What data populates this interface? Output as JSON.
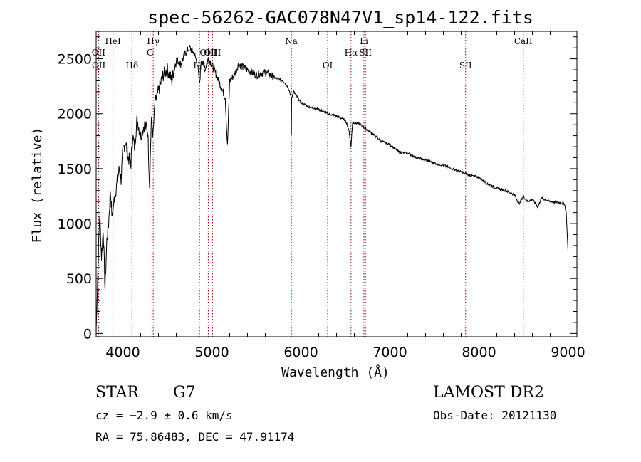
{
  "chart_data": {
    "type": "line",
    "title": "spec-56262-GAC078N47V1_sp14-122.fits",
    "xlabel": "Wavelength (Å)",
    "ylabel": "Flux (relative)",
    "xlim": [
      3700,
      9100
    ],
    "ylim": [
      -30,
      2750
    ],
    "xticks": [
      4000,
      5000,
      6000,
      7000,
      8000,
      9000
    ],
    "xtick_labels": [
      "4000",
      "5000",
      "6000",
      "7000",
      "8000",
      "9000"
    ],
    "yticks": [
      0,
      500,
      1000,
      1500,
      2000,
      2500
    ],
    "ytick_labels": [
      "0",
      "500",
      "1000",
      "1500",
      "2000",
      "2500"
    ],
    "series": [
      {
        "name": "spectrum",
        "x": [
          3700,
          3720,
          3740,
          3760,
          3780,
          3800,
          3820,
          3840,
          3860,
          3880,
          3900,
          3930,
          3960,
          3980,
          4000,
          4030,
          4060,
          4090,
          4110,
          4130,
          4160,
          4200,
          4240,
          4280,
          4300,
          4320,
          4340,
          4360,
          4400,
          4450,
          4500,
          4550,
          4600,
          4650,
          4700,
          4750,
          4800,
          4840,
          4861,
          4880,
          4920,
          4960,
          5000,
          5050,
          5100,
          5150,
          5175,
          5200,
          5250,
          5300,
          5400,
          5500,
          5600,
          5700,
          5800,
          5850,
          5890,
          5893,
          5896,
          5920,
          6000,
          6100,
          6200,
          6300,
          6400,
          6500,
          6540,
          6563,
          6580,
          6650,
          6700,
          6800,
          6900,
          7000,
          7100,
          7200,
          7300,
          7400,
          7500,
          7600,
          7700,
          7800,
          7900,
          8000,
          8100,
          8200,
          8300,
          8400,
          8450,
          8498,
          8542,
          8600,
          8662,
          8700,
          8800,
          8900,
          8960,
          8980,
          9000
        ],
        "y": [
          20,
          600,
          1100,
          700,
          950,
          400,
          850,
          1000,
          1300,
          1050,
          1200,
          1350,
          1500,
          1400,
          1650,
          1750,
          1600,
          1550,
          1800,
          1700,
          1950,
          1800,
          1900,
          1850,
          1350,
          1950,
          1800,
          2100,
          2200,
          2350,
          2400,
          2300,
          2500,
          2450,
          2550,
          2600,
          2550,
          2450,
          2250,
          2500,
          2400,
          2500,
          2450,
          2350,
          2250,
          2150,
          1700,
          2300,
          2350,
          2450,
          2400,
          2350,
          2380,
          2330,
          2300,
          2250,
          2150,
          1800,
          2150,
          2200,
          2100,
          2060,
          2040,
          2000,
          1980,
          1940,
          1850,
          1700,
          1920,
          1910,
          1880,
          1820,
          1750,
          1720,
          1650,
          1640,
          1600,
          1580,
          1550,
          1530,
          1500,
          1470,
          1440,
          1420,
          1360,
          1320,
          1300,
          1260,
          1180,
          1250,
          1200,
          1220,
          1150,
          1230,
          1200,
          1190,
          1180,
          1100,
          750
        ]
      }
    ],
    "spectral_lines": [
      {
        "label": "OII",
        "x": 3727,
        "row": 2
      },
      {
        "label": "OII",
        "x": 3729,
        "row": 3
      },
      {
        "label": "HeI",
        "x": 3889,
        "row": 1
      },
      {
        "label": "Hδ",
        "x": 4102,
        "row": 3
      },
      {
        "label": "Hγ",
        "x": 4341,
        "row": 1
      },
      {
        "label": "G",
        "x": 4305,
        "row": 2
      },
      {
        "label": "Hβ",
        "x": 4861,
        "row": 3
      },
      {
        "label": "OIII",
        "x": 4959,
        "row": 2
      },
      {
        "label": "OIII",
        "x": 5007,
        "row": 2
      },
      {
        "label": "Na",
        "x": 5893,
        "row": 1
      },
      {
        "label": "OI",
        "x": 6300,
        "row": 3
      },
      {
        "label": "Hα",
        "x": 6563,
        "row": 2
      },
      {
        "label": "Li",
        "x": 6708,
        "row": 1
      },
      {
        "label": "SII",
        "x": 6725,
        "row": 2
      },
      {
        "label": "SII",
        "x": 7850,
        "row": 3
      },
      {
        "label": "CaII",
        "x": 8498,
        "row": 1
      }
    ]
  },
  "footer": {
    "object_type": "STAR",
    "subclass": "G7",
    "survey": "LAMOST DR2",
    "cz": "cz = −2.9 ± 0.6 km/s",
    "obs_date": "Obs-Date: 20121130",
    "coords": "RA =  75.86483, DEC =  47.91174"
  },
  "colors": {
    "line_marker": "#8b0000",
    "spectrum": "#000000",
    "axes": "#000000"
  }
}
